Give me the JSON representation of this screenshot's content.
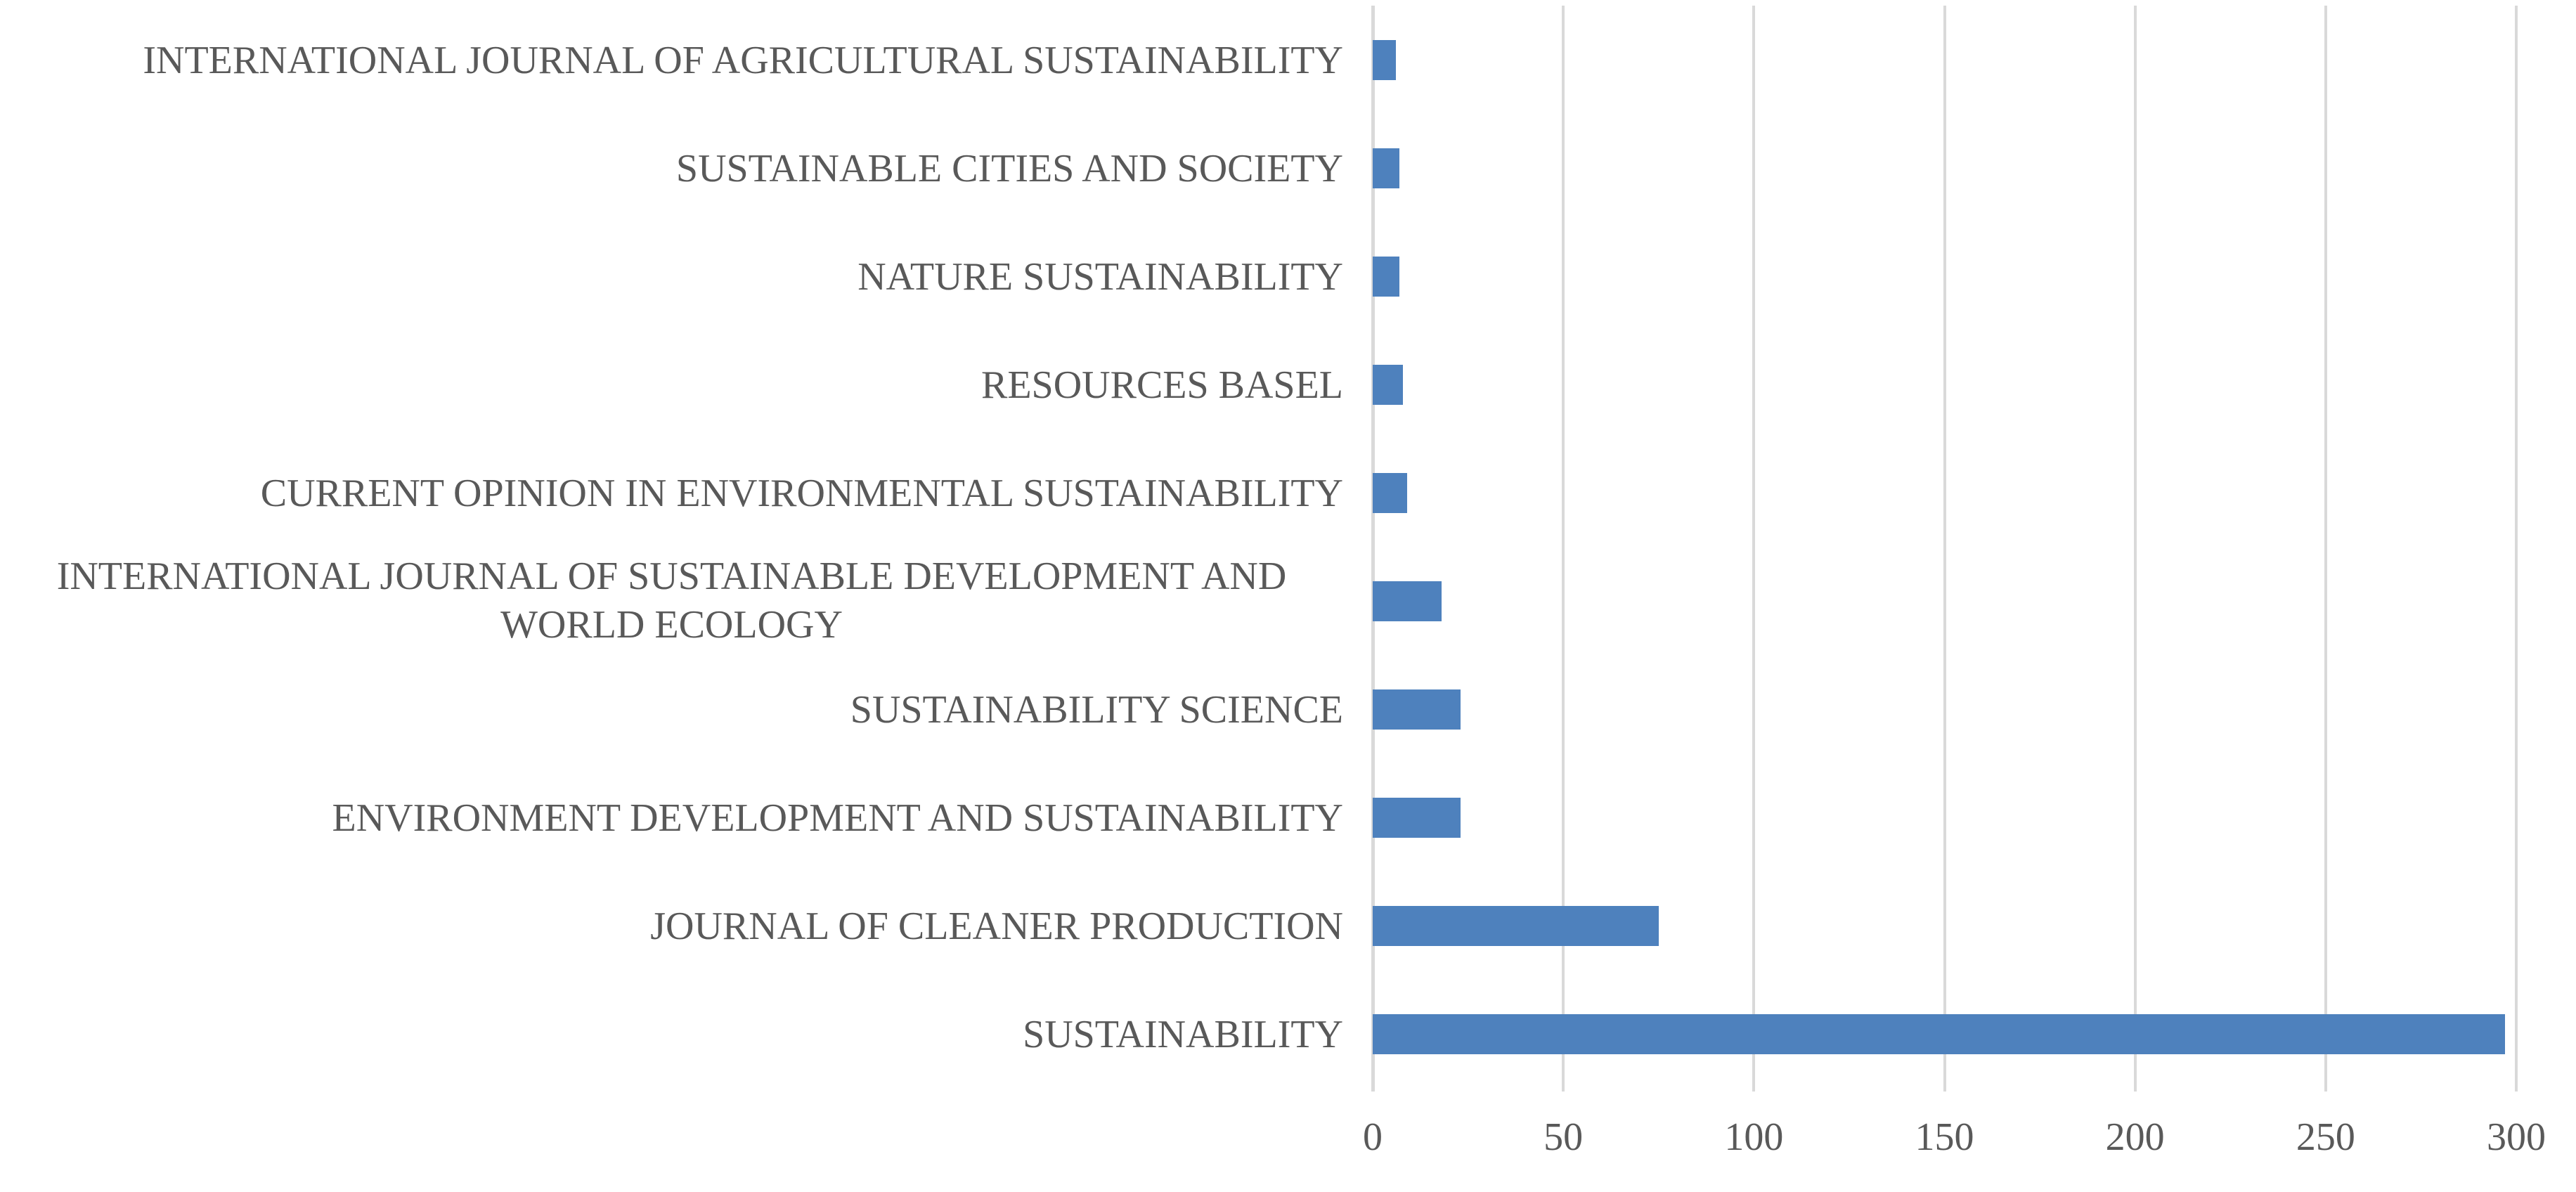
{
  "chart_data": {
    "type": "bar",
    "orientation": "horizontal",
    "title": "",
    "xlabel": "",
    "ylabel": "",
    "categories": [
      "INTERNATIONAL JOURNAL OF AGRICULTURAL SUSTAINABILITY",
      "SUSTAINABLE CITIES AND SOCIETY",
      "NATURE SUSTAINABILITY",
      "RESOURCES BASEL",
      "CURRENT OPINION IN ENVIRONMENTAL SUSTAINABILITY",
      "INTERNATIONAL JOURNAL OF SUSTAINABLE DEVELOPMENT AND WORLD ECOLOGY",
      "SUSTAINABILITY SCIENCE",
      "ENVIRONMENT DEVELOPMENT AND SUSTAINABILITY",
      "JOURNAL OF CLEANER PRODUCTION",
      "SUSTAINABILITY"
    ],
    "values": [
      6,
      7,
      7,
      8,
      9,
      18,
      23,
      23,
      75,
      297
    ],
    "xlim": [
      0,
      300
    ],
    "xticks": [
      0,
      50,
      100,
      150,
      200,
      250,
      300
    ],
    "grid": "vertical-gridlines-on",
    "legend": "none",
    "bar_color": "#4E81BD",
    "gridline_color": "#D9D9D9",
    "text_color": "#595959"
  }
}
